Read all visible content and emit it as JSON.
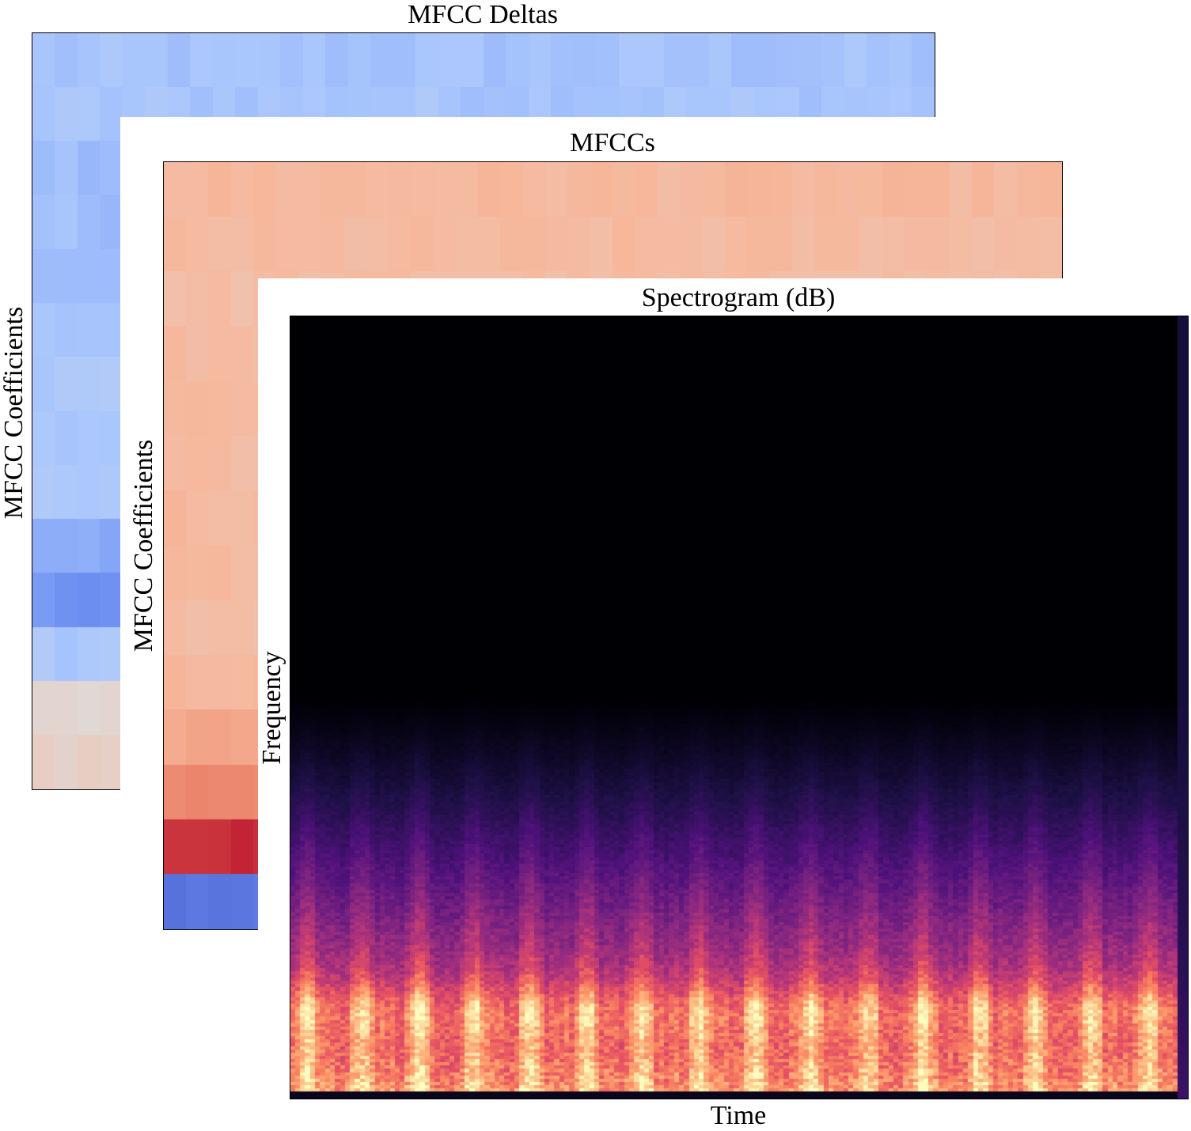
{
  "chart_data": [
    {
      "type": "heatmap",
      "title": "MFCC Deltas",
      "xlabel": "",
      "ylabel": "MFCC Coefficients",
      "colormap": "coolwarm",
      "colormap_stops": [
        "#3b4cc0",
        "#6f92f3",
        "#aac7fd",
        "#dddcdc",
        "#f7b89c",
        "#e7745b",
        "#b40426"
      ],
      "row_values": [
        0.32,
        0.33,
        0.3,
        0.31,
        0.32,
        0.33,
        0.34,
        0.33,
        0.33,
        0.25,
        0.18,
        0.34,
        0.52,
        0.56
      ]
    },
    {
      "type": "heatmap",
      "title": "MFCCs",
      "xlabel": "",
      "ylabel": "MFCC Coefficients",
      "colormap": "coolwarm",
      "colormap_stops": [
        "#3b4cc0",
        "#6f92f3",
        "#aac7fd",
        "#dddcdc",
        "#f7b89c",
        "#e7745b",
        "#b40426"
      ],
      "row_values": [
        0.66,
        0.65,
        0.64,
        0.65,
        0.66,
        0.65,
        0.66,
        0.65,
        0.64,
        0.66,
        0.71,
        0.78,
        0.94,
        0.1
      ]
    },
    {
      "type": "heatmap",
      "title": "Spectrogram (dB)",
      "xlabel": "Time",
      "ylabel": "Frequency",
      "colormap": "magma",
      "colormap_stops": [
        "#000004",
        "#1c1044",
        "#4f127b",
        "#812581",
        "#b5367a",
        "#e55064",
        "#fb8761",
        "#fec287",
        "#fcfdbf"
      ],
      "time_frames": 180,
      "freq_bins": 240,
      "burst_count": 16
    }
  ]
}
